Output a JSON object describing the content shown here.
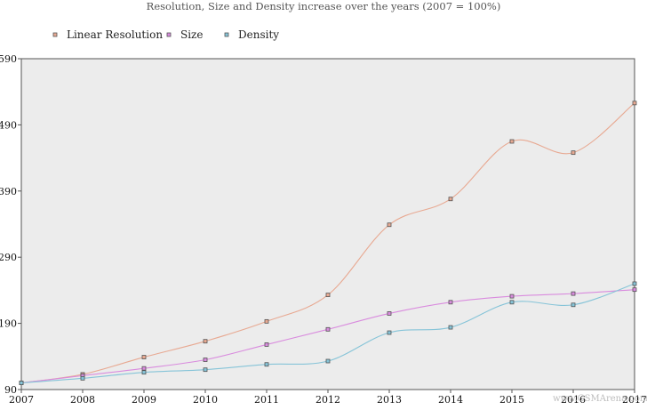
{
  "chart_data": {
    "type": "line",
    "title": "Resolution, Size and Density increase over the years (2007 = 100%)",
    "xlabel": "",
    "ylabel": "",
    "categories": [
      "2007",
      "2008",
      "2009",
      "2010",
      "2011",
      "2012",
      "2013",
      "2014",
      "2015",
      "2016",
      "2017"
    ],
    "y_ticks": [
      "90",
      "190",
      "290",
      "390",
      "490",
      "590"
    ],
    "ylim": [
      90,
      590
    ],
    "grid": false,
    "legend_position": "top-left",
    "series": [
      {
        "name": "Linear Resolution",
        "color": "#e8a992",
        "values": [
          100,
          113,
          139,
          163,
          193,
          233,
          339,
          378,
          465,
          448,
          523
        ]
      },
      {
        "name": "Size",
        "color": "#d98bde",
        "values": [
          100,
          111,
          122,
          135,
          158,
          181,
          205,
          222,
          231,
          235,
          241
        ]
      },
      {
        "name": "Density",
        "color": "#86c4d8",
        "values": [
          100,
          107,
          116,
          120,
          128,
          133,
          176,
          184,
          222,
          218,
          250
        ]
      }
    ],
    "watermark": "www.GSMArena.com"
  }
}
